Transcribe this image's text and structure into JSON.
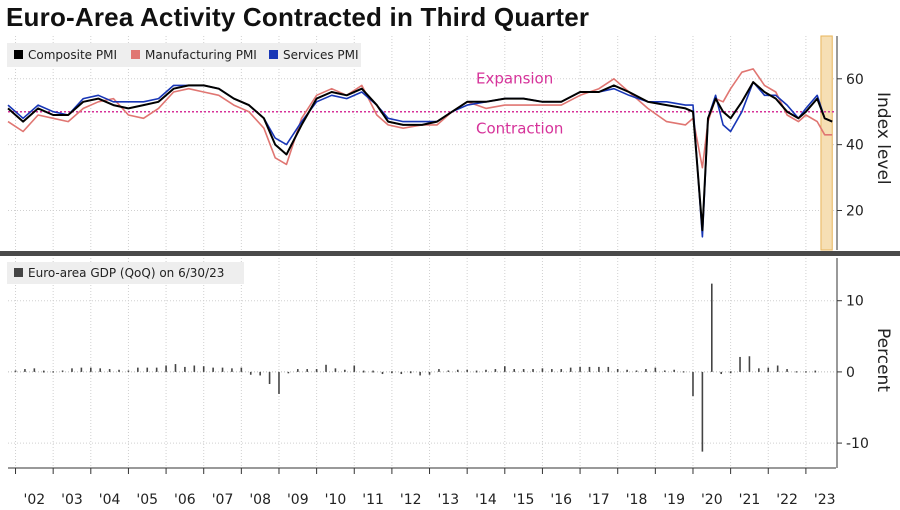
{
  "title": "Euro-Area Activity Contracted in Third Quarter",
  "colors": {
    "composite": "#000000",
    "manufacturing": "#e07672",
    "services": "#1836b6",
    "threshold": "#d6339a",
    "highlight": "#f6dfb4",
    "gdp_bar": "#444444"
  },
  "chart_data": [
    {
      "type": "line",
      "legend": [
        "Composite PMI",
        "Manufacturing PMI",
        "Services PMI"
      ],
      "annotations": [
        "Expansion",
        "Contraction"
      ],
      "ylabel": "Index level",
      "yticks": [
        "20",
        "40",
        "60"
      ],
      "ylim": [
        8,
        73
      ],
      "xlim": [
        2001.8,
        2023.8
      ],
      "threshold": 50,
      "highlight_range": [
        2023.4,
        2023.7
      ],
      "series": [
        {
          "name": "Composite PMI",
          "x": [
            2001.8,
            2002.2,
            2002.6,
            2003.0,
            2003.4,
            2003.8,
            2004.2,
            2004.6,
            2005.0,
            2005.4,
            2005.8,
            2006.2,
            2006.6,
            2007.0,
            2007.4,
            2007.8,
            2008.2,
            2008.6,
            2008.9,
            2009.2,
            2009.6,
            2010.0,
            2010.4,
            2010.8,
            2011.2,
            2011.6,
            2011.9,
            2012.3,
            2012.8,
            2013.2,
            2013.6,
            2014.0,
            2014.5,
            2015.0,
            2015.5,
            2016.0,
            2016.5,
            2017.0,
            2017.5,
            2017.9,
            2018.3,
            2018.8,
            2019.3,
            2019.8,
            2020.0,
            2020.25,
            2020.4,
            2020.6,
            2020.8,
            2021.0,
            2021.3,
            2021.6,
            2021.9,
            2022.2,
            2022.5,
            2022.8,
            2023.0,
            2023.3,
            2023.5,
            2023.7
          ],
          "values": [
            51,
            47,
            51,
            49,
            49,
            53,
            54,
            52,
            51,
            52,
            53,
            57,
            58,
            58,
            57,
            54,
            52,
            48,
            40,
            37,
            46,
            54,
            56,
            55,
            57,
            52,
            47,
            46,
            46,
            47,
            50,
            53,
            53,
            54,
            54,
            53,
            53,
            56,
            56,
            58,
            56,
            53,
            52,
            51,
            50,
            14,
            48,
            54,
            50,
            48,
            53,
            59,
            56,
            54,
            50,
            48,
            50,
            54,
            48,
            47
          ]
        },
        {
          "name": "Manufacturing PMI",
          "x": [
            2001.8,
            2002.2,
            2002.6,
            2003.0,
            2003.4,
            2003.8,
            2004.2,
            2004.6,
            2005.0,
            2005.4,
            2005.8,
            2006.2,
            2006.6,
            2007.0,
            2007.4,
            2007.8,
            2008.2,
            2008.6,
            2008.9,
            2009.2,
            2009.6,
            2010.0,
            2010.4,
            2010.8,
            2011.2,
            2011.6,
            2011.9,
            2012.3,
            2012.8,
            2013.2,
            2013.6,
            2014.0,
            2014.5,
            2015.0,
            2015.5,
            2016.0,
            2016.5,
            2017.0,
            2017.5,
            2017.9,
            2018.3,
            2018.8,
            2019.3,
            2019.8,
            2020.0,
            2020.25,
            2020.4,
            2020.6,
            2020.8,
            2021.0,
            2021.3,
            2021.6,
            2021.9,
            2022.2,
            2022.5,
            2022.8,
            2023.0,
            2023.3,
            2023.5,
            2023.7
          ],
          "values": [
            47,
            44,
            49,
            48,
            47,
            51,
            53,
            54,
            49,
            48,
            51,
            56,
            57,
            56,
            55,
            52,
            50,
            45,
            36,
            34,
            48,
            55,
            57,
            55,
            58,
            49,
            46,
            45,
            46,
            46,
            50,
            53,
            51,
            52,
            52,
            52,
            52,
            55,
            57,
            60,
            56,
            51,
            47,
            46,
            48,
            33,
            47,
            54,
            53,
            57,
            62,
            63,
            58,
            56,
            49,
            47,
            49,
            47,
            43,
            43
          ]
        },
        {
          "name": "Services PMI",
          "x": [
            2001.8,
            2002.2,
            2002.6,
            2003.0,
            2003.4,
            2003.8,
            2004.2,
            2004.6,
            2005.0,
            2005.4,
            2005.8,
            2006.2,
            2006.6,
            2007.0,
            2007.4,
            2007.8,
            2008.2,
            2008.6,
            2008.9,
            2009.2,
            2009.6,
            2010.0,
            2010.4,
            2010.8,
            2011.2,
            2011.6,
            2011.9,
            2012.3,
            2012.8,
            2013.2,
            2013.6,
            2014.0,
            2014.5,
            2015.0,
            2015.5,
            2016.0,
            2016.5,
            2017.0,
            2017.5,
            2017.9,
            2018.3,
            2018.8,
            2019.3,
            2019.8,
            2020.0,
            2020.25,
            2020.4,
            2020.6,
            2020.8,
            2021.0,
            2021.3,
            2021.6,
            2021.9,
            2022.2,
            2022.5,
            2022.8,
            2023.0,
            2023.3,
            2023.5,
            2023.7
          ],
          "values": [
            52,
            48,
            52,
            50,
            49,
            54,
            55,
            53,
            53,
            53,
            54,
            58,
            58,
            58,
            57,
            54,
            52,
            48,
            42,
            40,
            47,
            53,
            55,
            54,
            56,
            52,
            48,
            47,
            47,
            47,
            50,
            52,
            53,
            54,
            54,
            53,
            53,
            56,
            56,
            57,
            55,
            53,
            53,
            52,
            52,
            12,
            48,
            55,
            46,
            44,
            50,
            59,
            55,
            55,
            52,
            48,
            51,
            55,
            48,
            47
          ]
        }
      ]
    },
    {
      "type": "bar",
      "legend": [
        "Euro-area GDP (QoQ) on 6/30/23"
      ],
      "ylabel": "Percent",
      "yticks": [
        "10",
        "0",
        "-10"
      ],
      "ylim": [
        -13.5,
        16
      ],
      "x": [
        2002.0,
        2002.25,
        2002.5,
        2002.75,
        2003.0,
        2003.25,
        2003.5,
        2003.75,
        2004.0,
        2004.25,
        2004.5,
        2004.75,
        2005.0,
        2005.25,
        2005.5,
        2005.75,
        2006.0,
        2006.25,
        2006.5,
        2006.75,
        2007.0,
        2007.25,
        2007.5,
        2007.75,
        2008.0,
        2008.25,
        2008.5,
        2008.75,
        2009.0,
        2009.25,
        2009.5,
        2009.75,
        2010.0,
        2010.25,
        2010.5,
        2010.75,
        2011.0,
        2011.25,
        2011.5,
        2011.75,
        2012.0,
        2012.25,
        2012.5,
        2012.75,
        2013.0,
        2013.25,
        2013.5,
        2013.75,
        2014.0,
        2014.25,
        2014.5,
        2014.75,
        2015.0,
        2015.25,
        2015.5,
        2015.75,
        2016.0,
        2016.25,
        2016.5,
        2016.75,
        2017.0,
        2017.25,
        2017.5,
        2017.75,
        2018.0,
        2018.25,
        2018.5,
        2018.75,
        2019.0,
        2019.25,
        2019.5,
        2019.75,
        2020.0,
        2020.25,
        2020.5,
        2020.75,
        2021.0,
        2021.25,
        2021.5,
        2021.75,
        2022.0,
        2022.25,
        2022.5,
        2022.75,
        2023.0,
        2023.25
      ],
      "values": [
        0.2,
        0.4,
        0.5,
        0.1,
        0.0,
        0.2,
        0.5,
        0.6,
        0.6,
        0.5,
        0.4,
        0.3,
        0.2,
        0.6,
        0.6,
        0.6,
        0.9,
        1.1,
        0.7,
        0.9,
        0.8,
        0.6,
        0.6,
        0.5,
        0.6,
        -0.4,
        -0.5,
        -1.7,
        -3.1,
        -0.2,
        0.4,
        0.4,
        0.4,
        1.0,
        0.5,
        0.3,
        0.9,
        0.1,
        0.1,
        -0.3,
        -0.1,
        -0.3,
        -0.1,
        -0.5,
        -0.4,
        0.4,
        0.2,
        0.3,
        0.3,
        0.1,
        0.3,
        0.4,
        0.8,
        0.4,
        0.4,
        0.4,
        0.5,
        0.4,
        0.4,
        0.6,
        0.7,
        0.7,
        0.7,
        0.7,
        0.4,
        0.3,
        0.2,
        0.4,
        0.6,
        0.2,
        0.3,
        0.0,
        -3.4,
        -11.2,
        12.4,
        -0.3,
        -0.1,
        2.1,
        2.2,
        0.5,
        0.6,
        0.9,
        0.4,
        0.0,
        0.0,
        0.1
      ]
    }
  ],
  "x_axis": {
    "tick_labels": [
      "'02",
      "'03",
      "'04",
      "'05",
      "'06",
      "'07",
      "'08",
      "'09",
      "'10",
      "'11",
      "'12",
      "'13",
      "'14",
      "'15",
      "'16",
      "'17",
      "'18",
      "'19",
      "'20",
      "'21",
      "'22",
      "'23"
    ],
    "tick_values": [
      2002,
      2003,
      2004,
      2005,
      2006,
      2007,
      2008,
      2009,
      2010,
      2011,
      2012,
      2013,
      2014,
      2015,
      2016,
      2017,
      2018,
      2019,
      2020,
      2021,
      2022,
      2023
    ]
  }
}
